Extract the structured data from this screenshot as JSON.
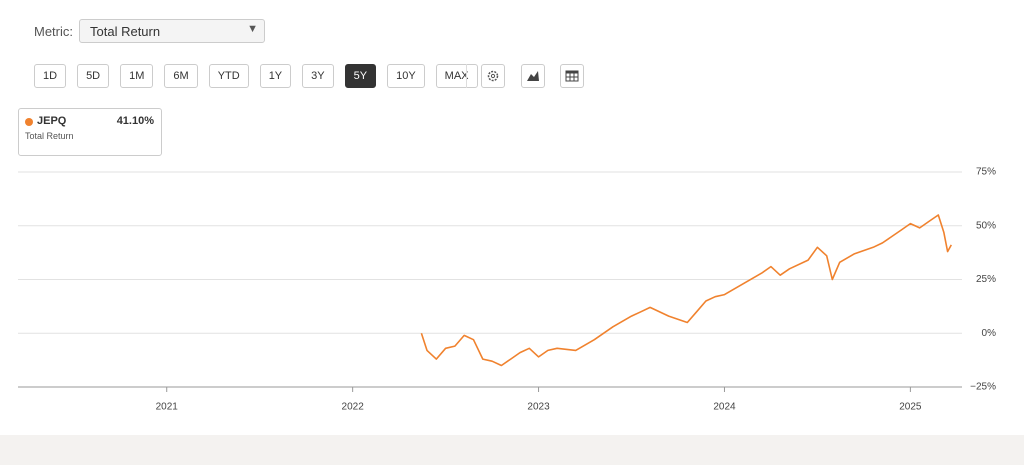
{
  "metric_label": "Metric:",
  "metric_value": "Total Return",
  "ranges": [
    "1D",
    "5D",
    "1M",
    "6M",
    "YTD",
    "1Y",
    "3Y",
    "5Y",
    "10Y",
    "MAX"
  ],
  "active_range": "5Y",
  "legend": {
    "value": "41.10%",
    "subtitle": "Total Return"
  },
  "chart_data": {
    "type": "line",
    "x": [
      2022.37,
      2022.4,
      2022.45,
      2022.5,
      2022.55,
      2022.6,
      2022.65,
      2022.7,
      2022.75,
      2022.8,
      2022.85,
      2022.9,
      2022.95,
      2023.0,
      2023.05,
      2023.1,
      2023.2,
      2023.3,
      2023.4,
      2023.5,
      2023.55,
      2023.6,
      2023.7,
      2023.8,
      2023.85,
      2023.9,
      2023.95,
      2024.0,
      2024.1,
      2024.2,
      2024.25,
      2024.3,
      2024.35,
      2024.45,
      2024.5,
      2024.55,
      2024.58,
      2024.62,
      2024.7,
      2024.8,
      2024.85,
      2024.9,
      2024.95,
      2025.0,
      2025.05,
      2025.1,
      2025.15,
      2025.18,
      2025.2,
      2025.22
    ],
    "series": [
      {
        "name": "JEPQ",
        "color": "#f0822e",
        "values": [
          0,
          -8,
          -12,
          -7,
          -6,
          -1,
          -3,
          -12,
          -13,
          -15,
          -12,
          -9,
          -7,
          -11,
          -8,
          -7,
          -8,
          -3,
          3,
          8,
          10,
          12,
          8,
          5,
          10,
          15,
          17,
          18,
          23,
          28,
          31,
          27,
          30,
          34,
          40,
          36,
          25,
          33,
          37,
          40,
          42,
          45,
          48,
          51,
          49,
          52,
          55,
          47,
          38,
          41.1
        ]
      }
    ],
    "xlim": [
      2020.2,
      2025.24
    ],
    "xticks": [
      2021,
      2022,
      2023,
      2024,
      2025
    ],
    "ylim": [
      -25,
      75
    ],
    "yticks": [
      {
        "value": -25,
        "label": "−25%"
      },
      {
        "value": 0,
        "label": "0%"
      },
      {
        "value": 25,
        "label": "25%"
      },
      {
        "value": 50,
        "label": "50%"
      },
      {
        "value": 75,
        "label": "75%"
      }
    ],
    "grid": true
  }
}
